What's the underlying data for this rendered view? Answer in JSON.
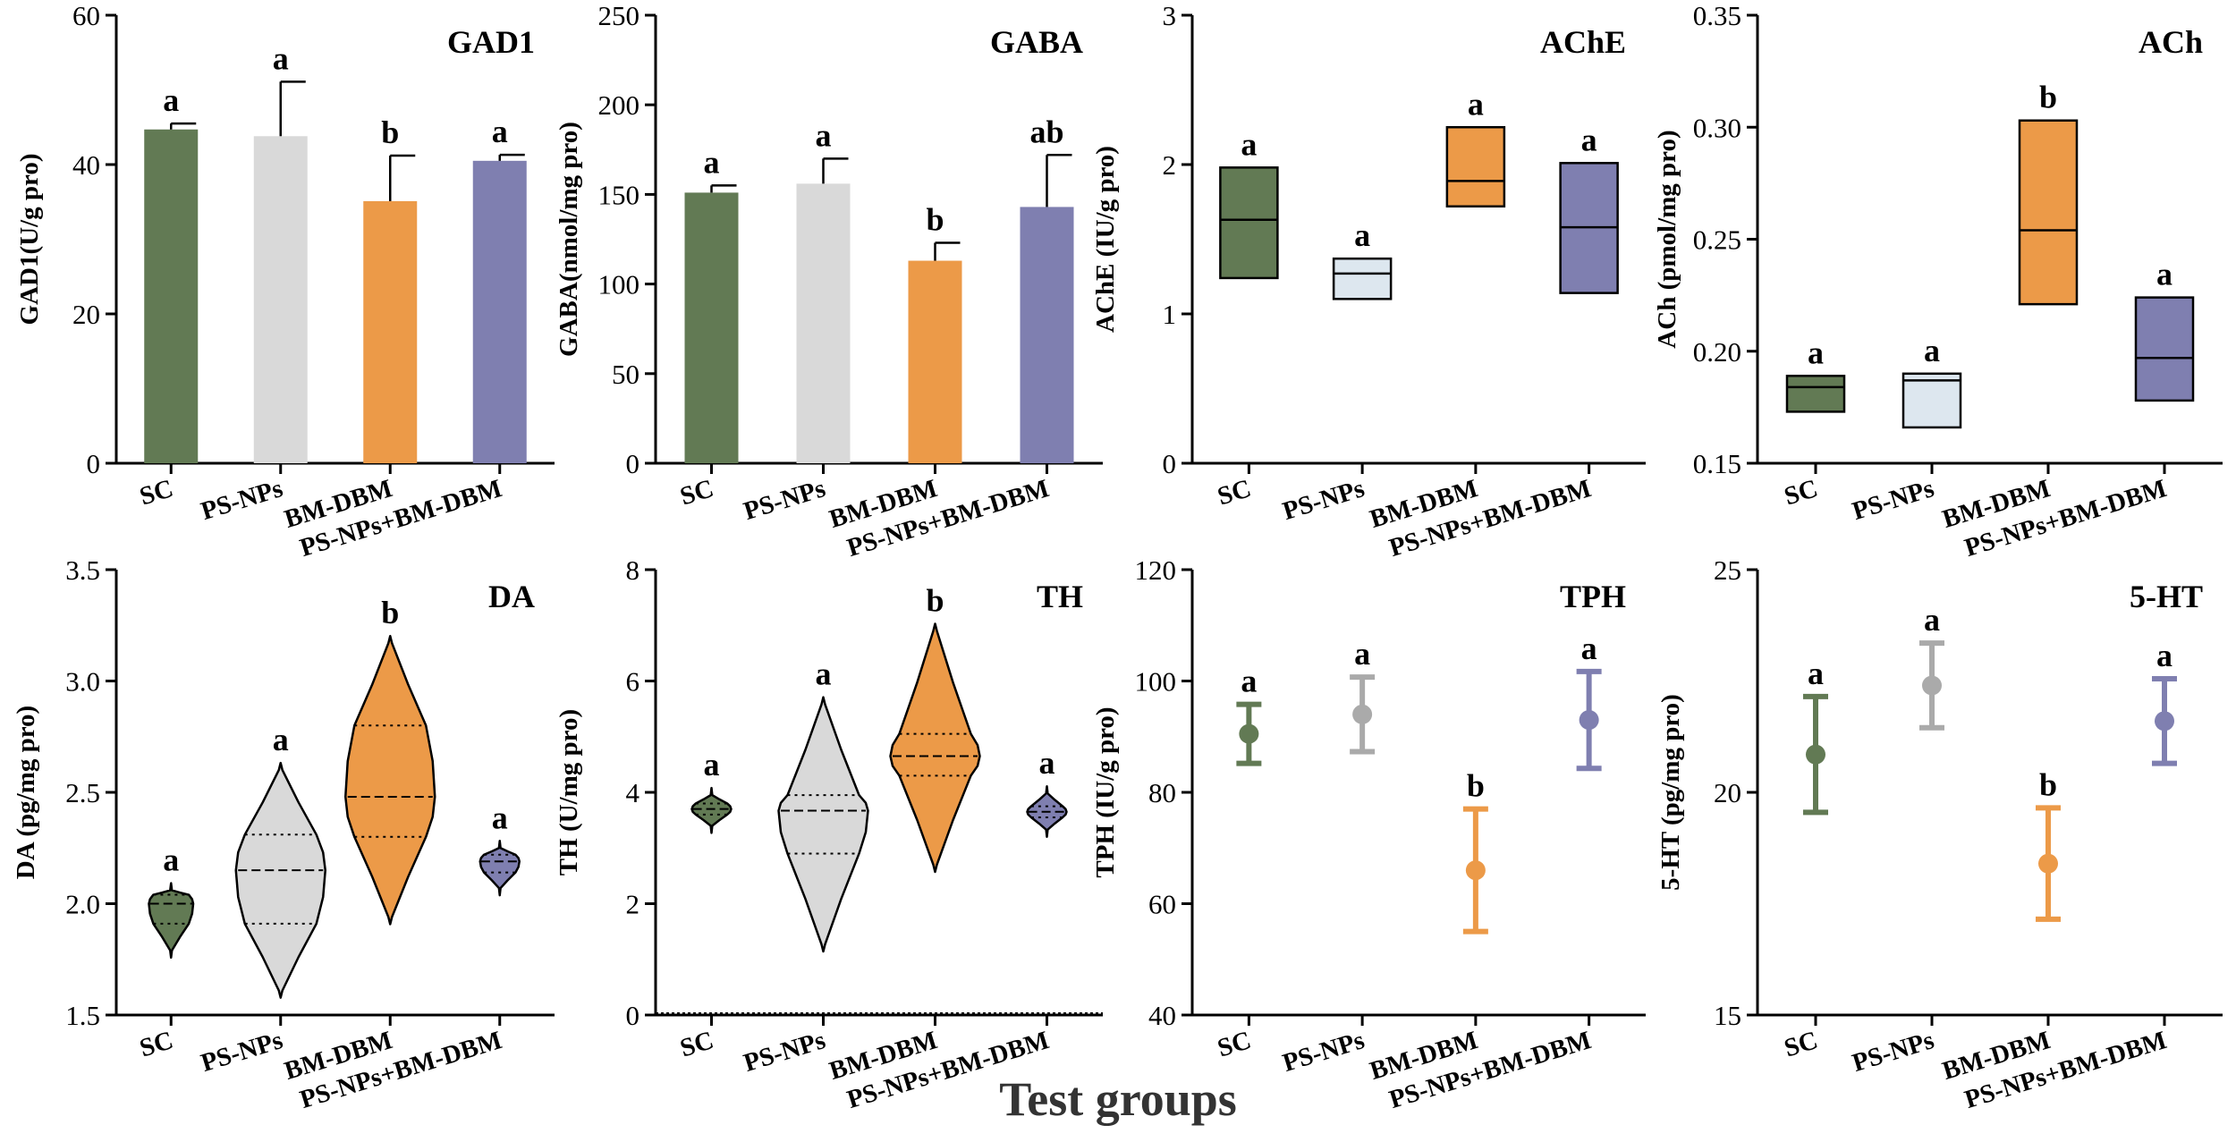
{
  "figure": {
    "xlabel": "Test groups"
  },
  "colors": {
    "SC": "#627a54",
    "PS-NPs": "#d9d9d9",
    "BM-DBM": "#ec9a48",
    "PS-NPs+BM-DBM": "#7f7fb0",
    "PS-NPs_box": "#dde7ef",
    "PS-NPs_point": "#aaaaaa"
  },
  "chart_data": [
    {
      "id": "gad1",
      "type": "bar",
      "title": "GAD1",
      "ylabel": "GAD1(U/g pro)",
      "ylim": [
        0,
        60
      ],
      "yticks": [
        0,
        20,
        40,
        60
      ],
      "categories": [
        "SC",
        "PS-NPs",
        "BM-DBM",
        "PS-NPs+BM-DBM"
      ],
      "values": [
        44.7,
        43.8,
        35.1,
        40.5
      ],
      "errors": [
        0.8,
        7.3,
        6.1,
        0.8
      ],
      "letters": [
        "a",
        "a",
        "b",
        "a"
      ]
    },
    {
      "id": "gaba",
      "type": "bar",
      "title": "GABA",
      "ylabel": "GABA(nmol/mg pro)",
      "ylim": [
        0,
        250
      ],
      "yticks": [
        0,
        50,
        100,
        150,
        200,
        250
      ],
      "categories": [
        "SC",
        "PS-NPs",
        "BM-DBM",
        "PS-NPs+BM-DBM"
      ],
      "values": [
        151,
        156,
        113,
        143
      ],
      "errors": [
        4,
        14,
        10,
        29
      ],
      "letters": [
        "a",
        "a",
        "b",
        "ab"
      ]
    },
    {
      "id": "ache",
      "type": "box",
      "title": "AChE",
      "ylabel": "AChE (IU/g pro)",
      "ylim": [
        0,
        3
      ],
      "yticks": [
        0,
        1,
        2,
        3
      ],
      "categories": [
        "SC",
        "PS-NPs",
        "BM-DBM",
        "PS-NPs+BM-DBM"
      ],
      "boxes": [
        {
          "low": 1.24,
          "mid": 1.63,
          "high": 1.98
        },
        {
          "low": 1.1,
          "mid": 1.27,
          "high": 1.37
        },
        {
          "low": 1.72,
          "mid": 1.89,
          "high": 2.25
        },
        {
          "low": 1.14,
          "mid": 1.58,
          "high": 2.01
        }
      ],
      "letters": [
        "a",
        "a",
        "a",
        "a"
      ]
    },
    {
      "id": "ach",
      "type": "box",
      "title": "ACh",
      "ylabel": "ACh (pmol/mg pro)",
      "ylim": [
        0.15,
        0.35
      ],
      "yticks": [
        0.15,
        0.2,
        0.25,
        0.3,
        0.35
      ],
      "ytick_labels": [
        "0.15",
        "0.20",
        "0.25",
        "0.30",
        "0.35"
      ],
      "categories": [
        "SC",
        "PS-NPs",
        "BM-DBM",
        "PS-NPs+BM-DBM"
      ],
      "boxes": [
        {
          "low": 0.173,
          "mid": 0.184,
          "high": 0.189
        },
        {
          "low": 0.166,
          "mid": 0.187,
          "high": 0.19
        },
        {
          "low": 0.221,
          "mid": 0.254,
          "high": 0.303
        },
        {
          "low": 0.178,
          "mid": 0.197,
          "high": 0.224
        }
      ],
      "letters": [
        "a",
        "a",
        "b",
        "a"
      ]
    },
    {
      "id": "da",
      "type": "violin",
      "title": "DA",
      "ylabel": "DA (pg/mg pro)",
      "ylim": [
        1.5,
        3.5
      ],
      "yticks": [
        1.5,
        2.0,
        2.5,
        3.0,
        3.5
      ],
      "ytick_labels": [
        "1.5",
        "2.0",
        "2.5",
        "3.0",
        "3.5"
      ],
      "categories": [
        "SC",
        "PS-NPs",
        "BM-DBM",
        "PS-NPs+BM-DBM"
      ],
      "violins": [
        {
          "min": 1.79,
          "q1": 1.91,
          "median": 2.0,
          "q3": 2.04,
          "max": 2.06
        },
        {
          "min": 1.61,
          "q1": 1.91,
          "median": 2.15,
          "q3": 2.31,
          "max": 2.6
        },
        {
          "min": 1.94,
          "q1": 2.3,
          "median": 2.48,
          "q3": 2.8,
          "max": 3.17
        },
        {
          "min": 2.07,
          "q1": 2.14,
          "median": 2.19,
          "q3": 2.22,
          "max": 2.25
        }
      ],
      "letters": [
        "a",
        "a",
        "b",
        "a"
      ]
    },
    {
      "id": "th",
      "type": "violin",
      "title": "TH",
      "ylabel": "TH (U/mg pro)",
      "ylim": [
        0,
        8
      ],
      "yticks": [
        0,
        2,
        4,
        6,
        8
      ],
      "categories": [
        "SC",
        "PS-NPs",
        "BM-DBM",
        "PS-NPs+BM-DBM"
      ],
      "violins": [
        {
          "min": 3.4,
          "q1": 3.6,
          "median": 3.7,
          "q3": 3.8,
          "max": 3.95
        },
        {
          "min": 1.27,
          "q1": 2.9,
          "median": 3.67,
          "q3": 3.95,
          "max": 5.58
        },
        {
          "min": 2.7,
          "q1": 4.3,
          "median": 4.65,
          "q3": 5.05,
          "max": 6.9
        },
        {
          "min": 3.33,
          "q1": 3.55,
          "median": 3.65,
          "q3": 3.75,
          "max": 3.98
        }
      ],
      "letters": [
        "a",
        "a",
        "b",
        "a"
      ]
    },
    {
      "id": "tph",
      "type": "errorbar",
      "title": "TPH",
      "ylabel": "TPH (IU/g pro)",
      "ylim": [
        40,
        120
      ],
      "yticks": [
        40,
        60,
        80,
        100,
        120
      ],
      "categories": [
        "SC",
        "PS-NPs",
        "BM-DBM",
        "PS-NPs+BM-DBM"
      ],
      "values": [
        90.5,
        94.0,
        66.0,
        93.0
      ],
      "errors": [
        5.3,
        6.7,
        11.0,
        8.7
      ],
      "letters": [
        "a",
        "a",
        "b",
        "a"
      ]
    },
    {
      "id": "ht5",
      "type": "errorbar",
      "title": "5-HT",
      "ylabel": "5-HT (pg/mg pro)",
      "ylim": [
        15,
        25
      ],
      "yticks": [
        15,
        20,
        25
      ],
      "categories": [
        "SC",
        "PS-NPs",
        "BM-DBM",
        "PS-NPs+BM-DBM"
      ],
      "values": [
        20.85,
        22.4,
        18.4,
        21.6
      ],
      "errors": [
        1.3,
        0.95,
        1.25,
        0.95
      ],
      "letters": [
        "a",
        "a",
        "b",
        "a"
      ]
    }
  ]
}
